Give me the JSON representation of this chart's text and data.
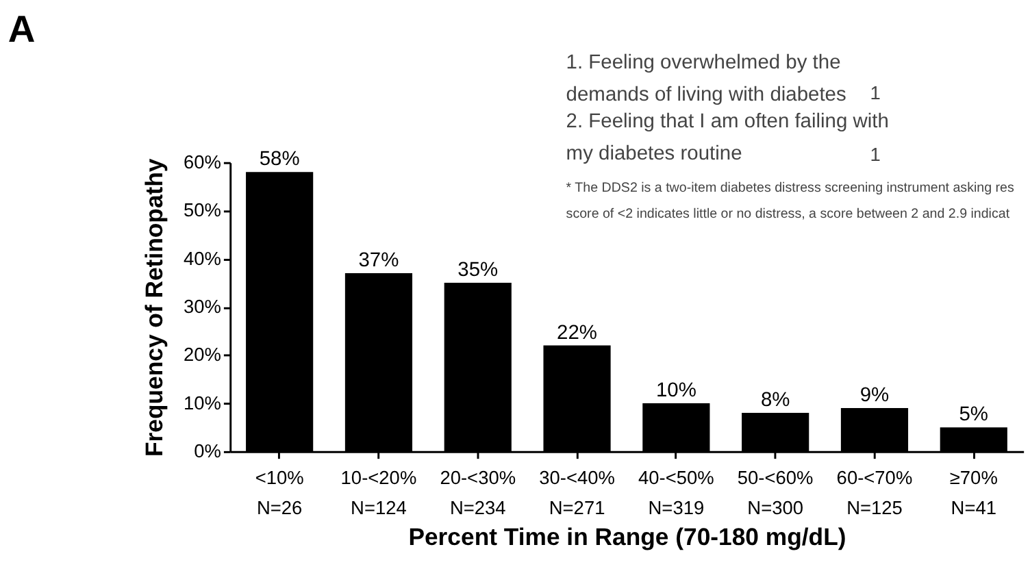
{
  "chart_data": {
    "type": "bar",
    "title": "A",
    "xlabel": "Percent Time in Range (70-180 mg/dL)",
    "ylabel": "Frequency of Retinopathy",
    "categories": [
      "<10%\nN=26",
      "10-<20%\nN=124",
      "20-<30%\nN=234",
      "30-<40%\nN=271",
      "40-<50%\nN=319",
      "50-<60%\nN=300",
      "60-<70%\nN=125",
      "≥70%\nN=41"
    ],
    "values": [
      58,
      37,
      35,
      22,
      10,
      8,
      9,
      5
    ],
    "value_labels": [
      "58%",
      "37%",
      "35%",
      "22%",
      "10%",
      "8%",
      "9%",
      "5%"
    ],
    "color": "#000000",
    "ylim": [
      0,
      60
    ],
    "yticks": [
      {
        "value": 0,
        "label": "0%"
      },
      {
        "value": 10,
        "label": "10%"
      },
      {
        "value": 20,
        "label": "20%"
      },
      {
        "value": 30,
        "label": "30%"
      },
      {
        "value": 40,
        "label": "40%"
      },
      {
        "value": 50,
        "label": "50%"
      },
      {
        "value": 60,
        "label": "60%"
      }
    ],
    "grid": false,
    "annotations": [
      "1. Feeling overwhelmed by the\ndemands of living with diabetes",
      "1",
      "2. Feeling that I am often failing with\nmy diabetes routine",
      "1",
      "* The DDS2 is a two-item diabetes distress screening instrument asking res\nscore of <2 indicates little or no distress, a score between 2 and 2.9 indicat"
    ]
  }
}
